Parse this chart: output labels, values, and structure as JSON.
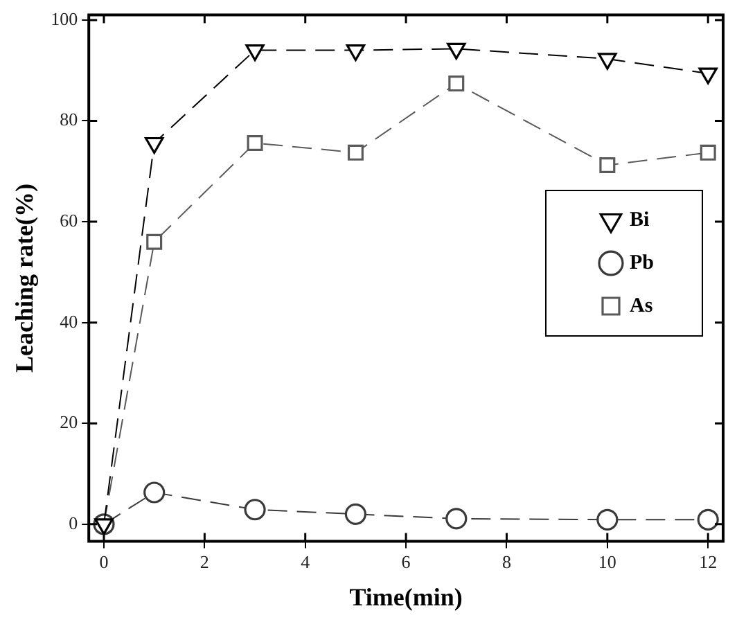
{
  "chart_data": {
    "type": "line",
    "xlabel": "Time(min)",
    "ylabel": "Leaching rate(%)",
    "x": [
      0,
      1,
      3,
      5,
      7,
      10,
      12
    ],
    "series": [
      {
        "name": "Bi",
        "color": "#000000",
        "marker": "triangle",
        "values": [
          0,
          75.6,
          94,
          94,
          94.3,
          92.3,
          89.4
        ]
      },
      {
        "name": "Pb",
        "color": "#3a3a3a",
        "marker": "circle",
        "values": [
          0,
          6.3,
          2.9,
          2.0,
          1.1,
          0.9,
          0.9
        ]
      },
      {
        "name": "As",
        "color": "#5a5a5a",
        "marker": "square",
        "values": [
          0,
          56,
          75.6,
          73.7,
          87.4,
          71.2,
          73.7
        ]
      }
    ],
    "xlim": [
      -0.3,
      12.3
    ],
    "xticks": [
      0,
      2,
      4,
      6,
      8,
      10,
      12
    ],
    "ylim": [
      -3.4,
      101
    ],
    "yticks": [
      0,
      20,
      40,
      60,
      80,
      100
    ],
    "grid": false,
    "legend": "right",
    "line_style": "dashed"
  }
}
